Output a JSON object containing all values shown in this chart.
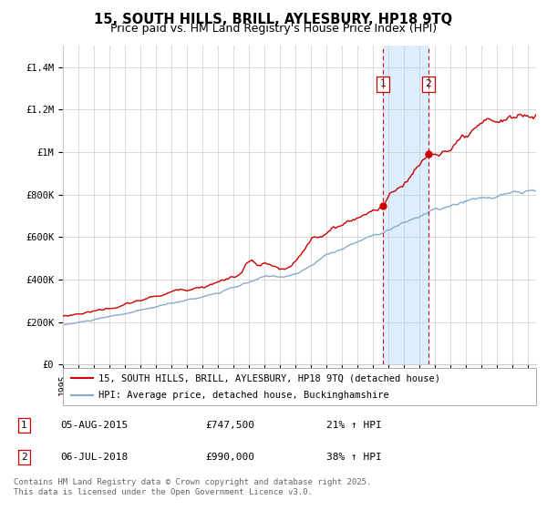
{
  "title": "15, SOUTH HILLS, BRILL, AYLESBURY, HP18 9TQ",
  "subtitle": "Price paid vs. HM Land Registry's House Price Index (HPI)",
  "ylim": [
    0,
    1500000
  ],
  "yticks": [
    0,
    200000,
    400000,
    600000,
    800000,
    1000000,
    1200000,
    1400000
  ],
  "ytick_labels": [
    "£0",
    "£200K",
    "£400K",
    "£600K",
    "£800K",
    "£1M",
    "£1.2M",
    "£1.4M"
  ],
  "x_start_year": 1995,
  "x_end_year": 2025,
  "sale1_date": "05-AUG-2015",
  "sale1_price": 747500,
  "sale1_year": 2015.6,
  "sale1_pct": "21% ↑ HPI",
  "sale2_date": "06-JUL-2018",
  "sale2_price": 990000,
  "sale2_year": 2018.5,
  "sale2_pct": "38% ↑ HPI",
  "legend_line1": "15, SOUTH HILLS, BRILL, AYLESBURY, HP18 9TQ (detached house)",
  "legend_line2": "HPI: Average price, detached house, Buckinghamshire",
  "footer": "Contains HM Land Registry data © Crown copyright and database right 2025.\nThis data is licensed under the Open Government Licence v3.0.",
  "red_line_color": "#cc0000",
  "blue_line_color": "#88aacc",
  "shade_color": "#ddeeff",
  "grid_color": "#cccccc",
  "bg_color": "#ffffff",
  "title_fontsize": 10.5,
  "subtitle_fontsize": 9,
  "tick_fontsize": 7.5,
  "legend_fontsize": 7.5,
  "footer_fontsize": 6.5,
  "annotation_table_fontsize": 8
}
